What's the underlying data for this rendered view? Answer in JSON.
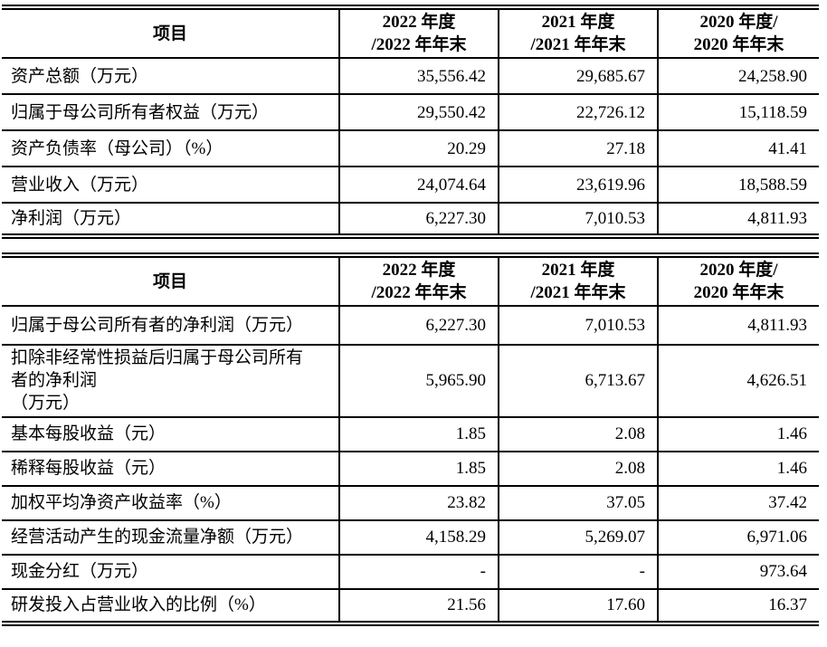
{
  "colors": {
    "border": "#000000",
    "background": "#ffffff",
    "text": "#000000"
  },
  "table1": {
    "header": {
      "item_label": "项目",
      "columns": [
        "2022 年度\n/2022 年年末",
        "2021 年度\n/2021 年年末",
        "2020 年度/\n2020 年年末"
      ]
    },
    "rows": [
      {
        "label": "资产总额（万元）",
        "values": [
          "35,556.42",
          "29,685.67",
          "24,258.90"
        ]
      },
      {
        "label": "归属于母公司所有者权益（万元）",
        "values": [
          "29,550.42",
          "22,726.12",
          "15,118.59"
        ]
      },
      {
        "label": "资产负债率（母公司）（%）",
        "values": [
          "20.29",
          "27.18",
          "41.41"
        ]
      },
      {
        "label": "营业收入（万元）",
        "values": [
          "24,074.64",
          "23,619.96",
          "18,588.59"
        ]
      },
      {
        "label": "净利润（万元）",
        "values": [
          "6,227.30",
          "7,010.53",
          "4,811.93"
        ]
      }
    ]
  },
  "table2": {
    "header": {
      "item_label": "项目",
      "columns": [
        "2022 年度\n/2022 年年末",
        "2021 年度\n/2021 年年末",
        "2020 年度/\n2020 年年末"
      ]
    },
    "rows": [
      {
        "label": "归属于母公司所有者的净利润（万元）",
        "values": [
          "6,227.30",
          "7,010.53",
          "4,811.93"
        ]
      },
      {
        "label": "扣除非经常性损益后归属于母公司所有\n者的净利润\n（万元）",
        "values": [
          "5,965.90",
          "6,713.67",
          "4,626.51"
        ]
      },
      {
        "label": "基本每股收益（元）",
        "values": [
          "1.85",
          "2.08",
          "1.46"
        ]
      },
      {
        "label": "稀释每股收益（元）",
        "values": [
          "1.85",
          "2.08",
          "1.46"
        ]
      },
      {
        "label": "加权平均净资产收益率（%）",
        "values": [
          "23.82",
          "37.05",
          "37.42"
        ]
      },
      {
        "label": "经营活动产生的现金流量净额（万元）",
        "values": [
          "4,158.29",
          "5,269.07",
          "6,971.06"
        ]
      },
      {
        "label": "现金分红（万元）",
        "values": [
          "-",
          "-",
          "973.64"
        ]
      },
      {
        "label": "研发投入占营业收入的比例（%）",
        "values": [
          "21.56",
          "17.60",
          "16.37"
        ]
      }
    ]
  }
}
